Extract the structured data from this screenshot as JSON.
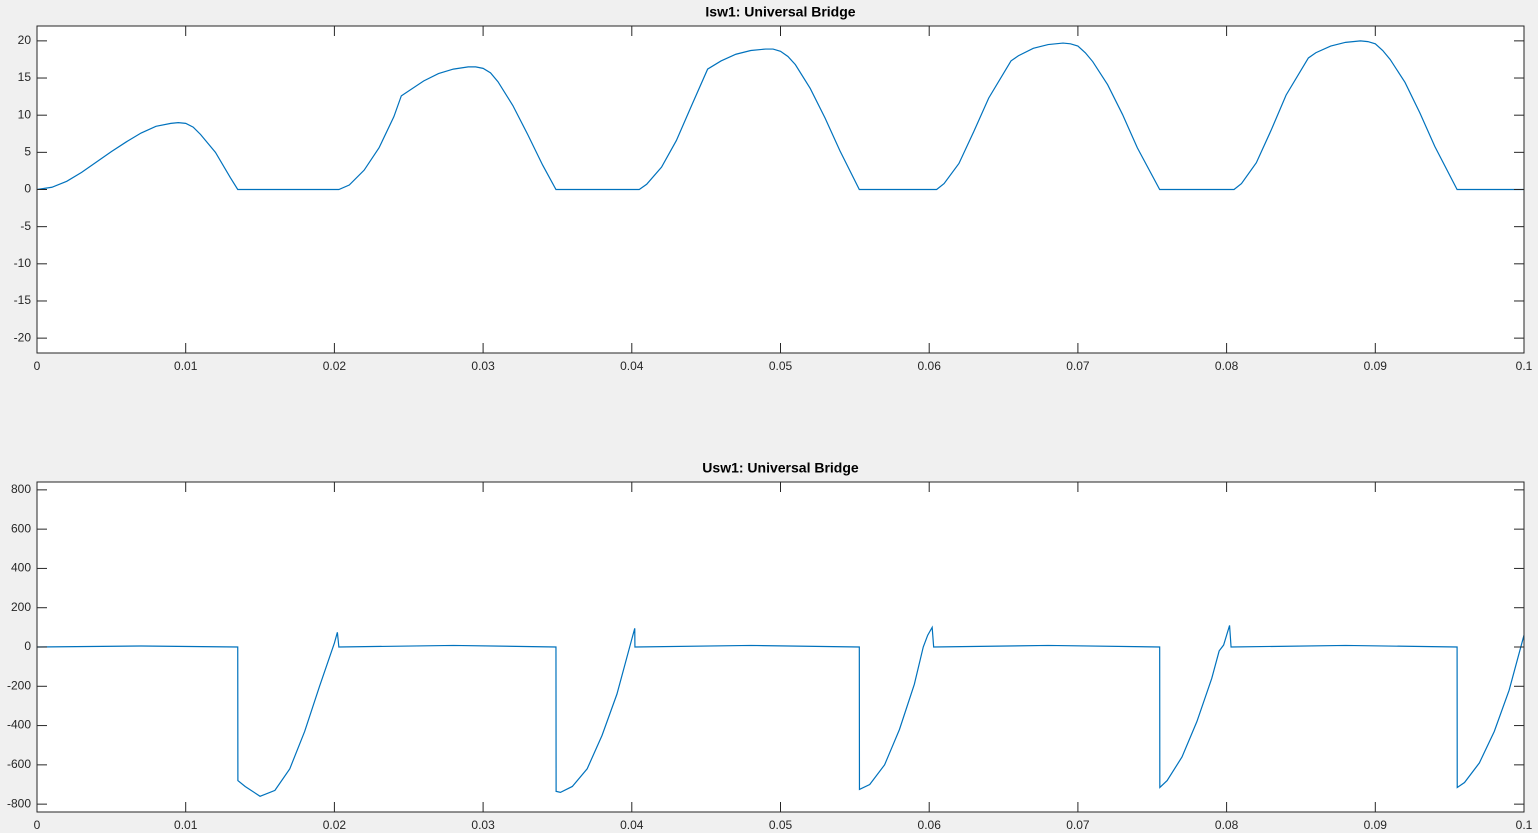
{
  "chart_data": [
    {
      "type": "line",
      "title": "Isw1: Universal Bridge",
      "color": "#0072bd",
      "xlim": [
        0,
        0.1
      ],
      "xticks": [
        0,
        0.01,
        0.02,
        0.03,
        0.04,
        0.05,
        0.06,
        0.07,
        0.08,
        0.09,
        0.1
      ],
      "ylim": [
        -22,
        22
      ],
      "yticks": [
        -20,
        -15,
        -10,
        -5,
        0,
        5,
        10,
        15,
        20
      ],
      "x": [
        0,
        0.001,
        0.002,
        0.003,
        0.004,
        0.005,
        0.006,
        0.007,
        0.008,
        0.009,
        0.0095,
        0.01,
        0.0105,
        0.011,
        0.012,
        0.013,
        0.0135,
        0.0203,
        0.021,
        0.022,
        0.023,
        0.024,
        0.0245,
        0.026,
        0.027,
        0.028,
        0.029,
        0.0295,
        0.03,
        0.0305,
        0.031,
        0.032,
        0.033,
        0.034,
        0.0349,
        0.0405,
        0.041,
        0.042,
        0.043,
        0.044,
        0.0451,
        0.046,
        0.047,
        0.048,
        0.049,
        0.0495,
        0.05,
        0.0505,
        0.051,
        0.052,
        0.053,
        0.054,
        0.0553,
        0.0605,
        0.061,
        0.062,
        0.063,
        0.064,
        0.0655,
        0.066,
        0.067,
        0.068,
        0.069,
        0.0695,
        0.07,
        0.0705,
        0.071,
        0.072,
        0.073,
        0.074,
        0.0755,
        0.0805,
        0.081,
        0.082,
        0.083,
        0.084,
        0.0855,
        0.086,
        0.087,
        0.088,
        0.089,
        0.0895,
        0.09,
        0.0905,
        0.091,
        0.092,
        0.093,
        0.094,
        0.0955,
        0.1
      ],
      "values": [
        0,
        0.3,
        1.1,
        2.3,
        3.7,
        5.1,
        6.4,
        7.6,
        8.5,
        8.9,
        9.0,
        8.9,
        8.4,
        7.4,
        5.0,
        1.6,
        0,
        0,
        0.6,
        2.6,
        5.6,
        9.8,
        12.6,
        14.6,
        15.6,
        16.2,
        16.5,
        16.5,
        16.3,
        15.7,
        14.5,
        11.3,
        7.4,
        3.3,
        0,
        0,
        0.7,
        3.0,
        6.6,
        11.2,
        16.2,
        17.3,
        18.2,
        18.7,
        18.9,
        18.9,
        18.6,
        17.9,
        16.8,
        13.6,
        9.6,
        5.2,
        0,
        0,
        0.8,
        3.5,
        7.8,
        12.3,
        17.3,
        18.0,
        19.0,
        19.5,
        19.7,
        19.6,
        19.3,
        18.4,
        17.2,
        14.1,
        10.1,
        5.6,
        0,
        0,
        0.8,
        3.6,
        8.0,
        12.7,
        17.7,
        18.4,
        19.3,
        19.8,
        20.0,
        19.9,
        19.6,
        18.7,
        17.5,
        14.4,
        10.3,
        5.8,
        0,
        0
      ]
    },
    {
      "type": "line",
      "title": "Usw1: Universal Bridge",
      "color": "#0072bd",
      "xlim": [
        0,
        0.1
      ],
      "xticks": [
        0,
        0.01,
        0.02,
        0.03,
        0.04,
        0.05,
        0.06,
        0.07,
        0.08,
        0.09,
        0.1
      ],
      "ylim": [
        -840,
        840
      ],
      "yticks": [
        -800,
        -600,
        -400,
        -200,
        0,
        200,
        400,
        600,
        800
      ],
      "x": [
        0,
        0.007,
        0.0135,
        0.01351,
        0.014,
        0.015,
        0.016,
        0.017,
        0.018,
        0.019,
        0.02,
        0.0202,
        0.0203,
        0.028,
        0.0349,
        0.03491,
        0.0352,
        0.036,
        0.037,
        0.038,
        0.039,
        0.04,
        0.0402,
        0.04021,
        0.048,
        0.0553,
        0.05531,
        0.056,
        0.057,
        0.058,
        0.059,
        0.0596,
        0.0599,
        0.0602,
        0.0603,
        0.068,
        0.0755,
        0.07551,
        0.076,
        0.077,
        0.078,
        0.079,
        0.0795,
        0.0798,
        0.0802,
        0.0803,
        0.088,
        0.0955,
        0.09551,
        0.096,
        0.097,
        0.098,
        0.099,
        0.1
      ],
      "values": [
        0,
        5,
        0,
        -680,
        -710,
        -760,
        -730,
        -620,
        -430,
        -200,
        20,
        75,
        0,
        8,
        0,
        -735,
        -740,
        -710,
        -620,
        -450,
        -240,
        40,
        95,
        0,
        8,
        0,
        -725,
        -700,
        -600,
        -420,
        -190,
        0,
        60,
        100,
        0,
        8,
        0,
        -715,
        -680,
        -560,
        -380,
        -160,
        -20,
        10,
        110,
        0,
        8,
        0,
        -715,
        -690,
        -590,
        -430,
        -220,
        60
      ]
    }
  ]
}
